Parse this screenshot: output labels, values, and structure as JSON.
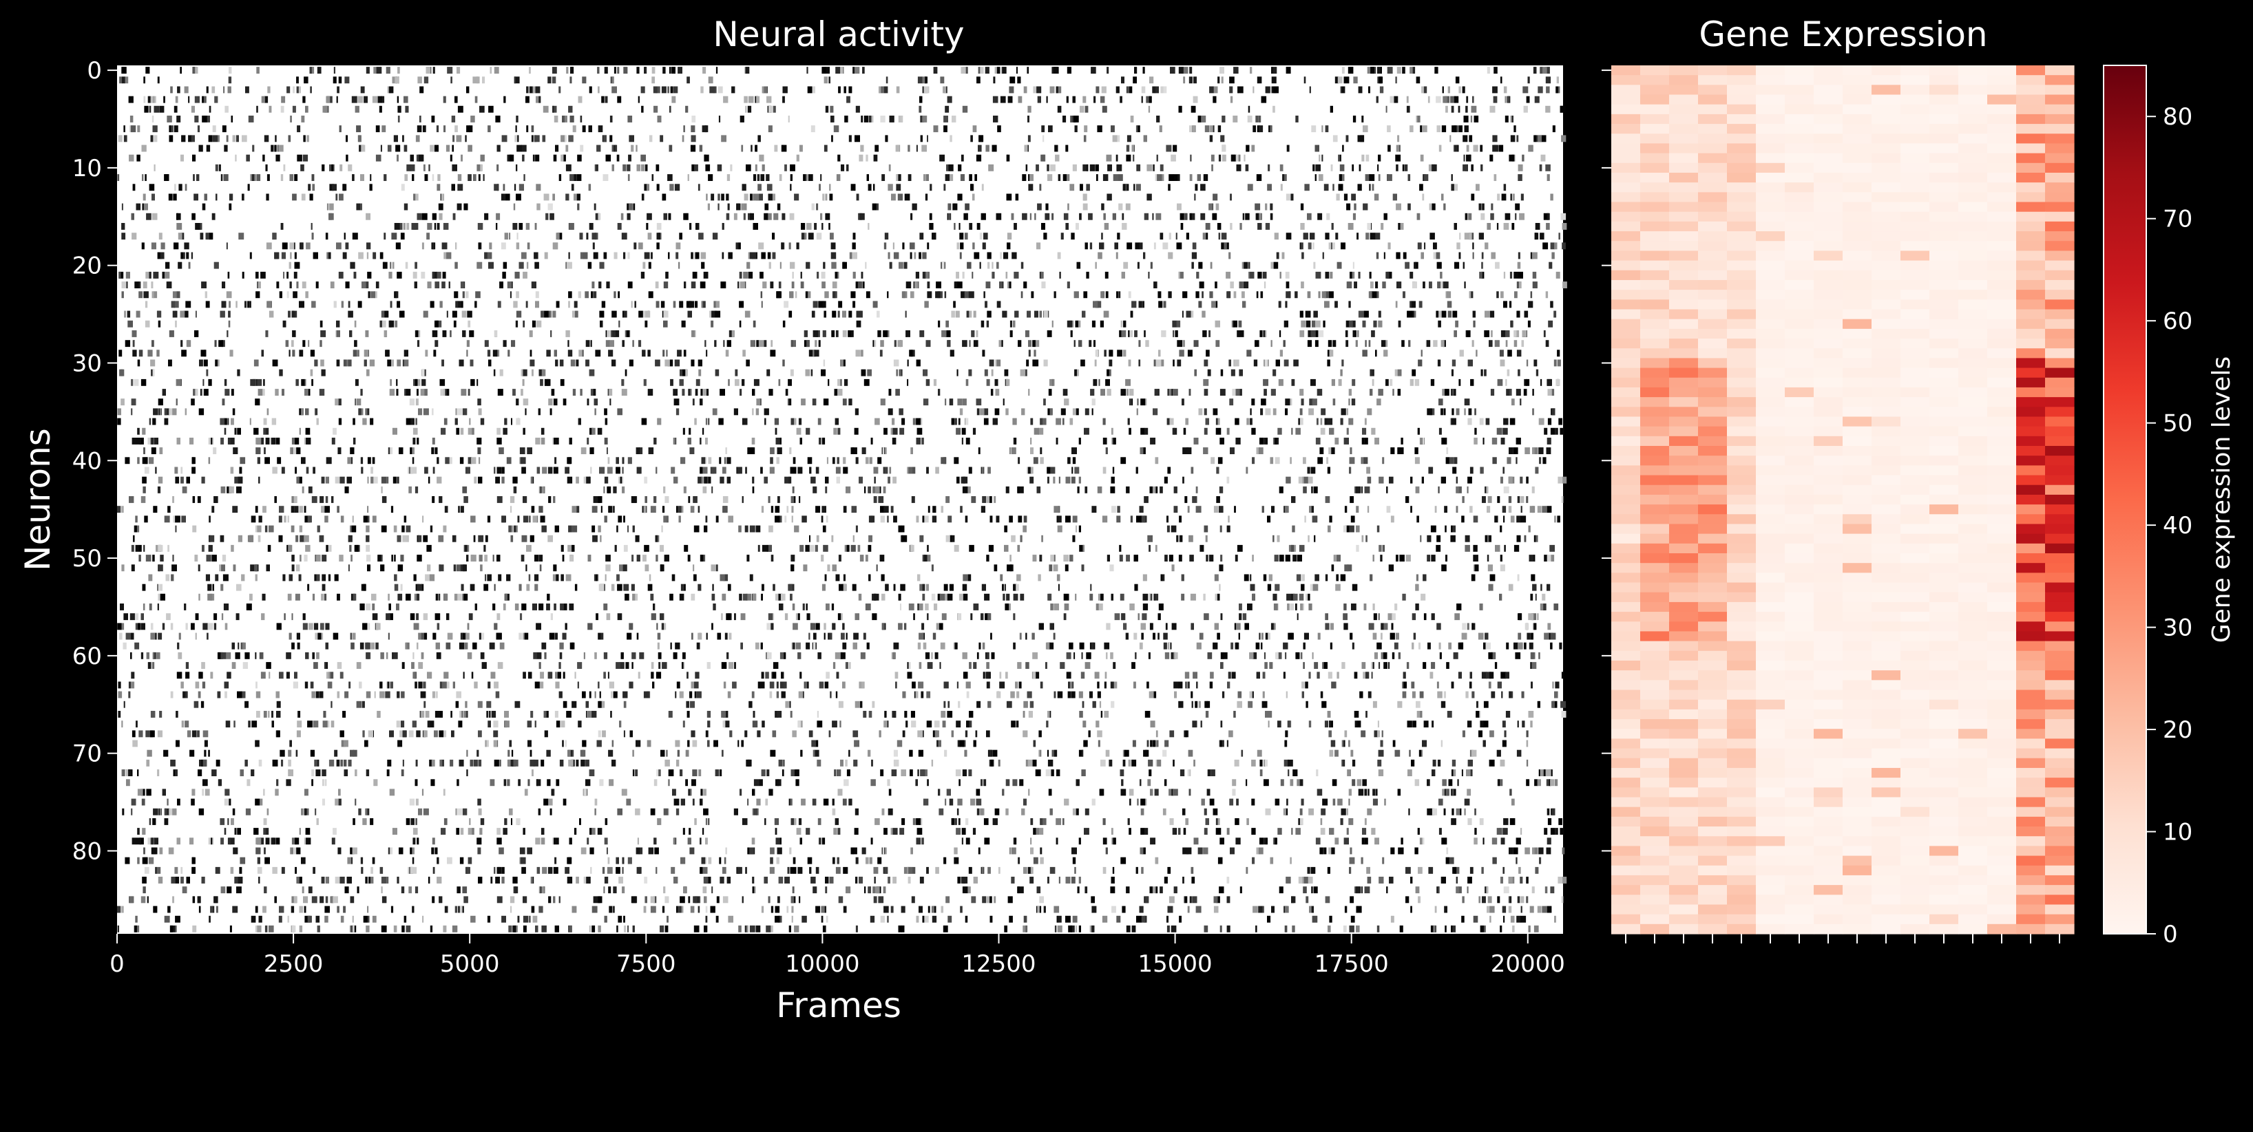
{
  "chart_data": [
    {
      "type": "heatmap",
      "title": "Neural activity",
      "xlabel": "Frames",
      "ylabel": "Neurons",
      "colormap": "Greys",
      "x_range": [
        0,
        20500
      ],
      "y_range": [
        0,
        89
      ],
      "x_ticks": [
        0,
        2500,
        5000,
        7500,
        10000,
        12500,
        15000,
        17500,
        20000
      ],
      "x_tick_labels": [
        "0",
        "2500",
        "5000",
        "7500",
        "10000",
        "12500",
        "15000",
        "17500",
        "20000"
      ],
      "y_ticks": [
        0,
        10,
        20,
        30,
        40,
        50,
        60,
        70,
        80
      ],
      "y_tick_labels": [
        "0",
        "10",
        "20",
        "30",
        "40",
        "50",
        "60",
        "70",
        "80"
      ],
      "n_neurons": 89,
      "background_color": "#ffffff",
      "activity_color": "#000000"
    },
    {
      "type": "heatmap",
      "title": "Gene Expression",
      "colormap": "Reds",
      "n_rows": 89,
      "n_genes": 16,
      "high_expression_genes": [
        0,
        1,
        2,
        3,
        4,
        14,
        15
      ],
      "value_range": [
        0,
        85
      ],
      "colorbar": {
        "label": "Gene expression levels",
        "ticks": [
          0,
          10,
          20,
          30,
          40,
          50,
          60,
          70,
          80
        ],
        "tick_labels": [
          "0",
          "10",
          "20",
          "30",
          "40",
          "50",
          "60",
          "70",
          "80"
        ],
        "min": 0,
        "max": 85
      }
    }
  ]
}
